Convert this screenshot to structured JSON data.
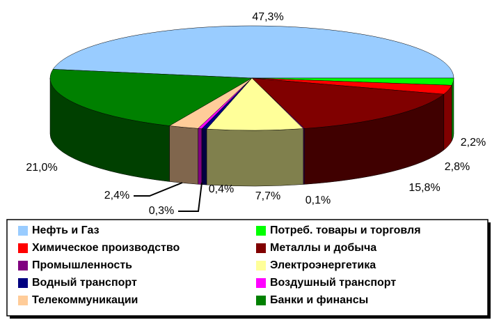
{
  "chart_data": {
    "type": "pie3d",
    "categories": [
      "Нефть и Газ",
      "Потреб. товары и торговля",
      "Химическое производство",
      "Металлы и добыча",
      "Промышленность",
      "Электроэнергетика",
      "Водный транспорт",
      "Воздушный транспорт",
      "Телекоммуникации",
      "Банки и финансы"
    ],
    "values": [
      47.3,
      2.2,
      2.8,
      15.8,
      0.1,
      7.7,
      0.4,
      0.3,
      2.4,
      21.0
    ],
    "value_labels": [
      "47,3%",
      "2,2%",
      "2,8%",
      "15,8%",
      "0,1%",
      "7,7%",
      "0,4%",
      "0,3%",
      "2,4%",
      "21,0%"
    ],
    "colors": [
      "#99ccff",
      "#00ff00",
      "#ff0000",
      "#800000",
      "#800080",
      "#ffff99",
      "#000080",
      "#ff00ff",
      "#ffcc99",
      "#008000"
    ],
    "legend": "bottom"
  }
}
